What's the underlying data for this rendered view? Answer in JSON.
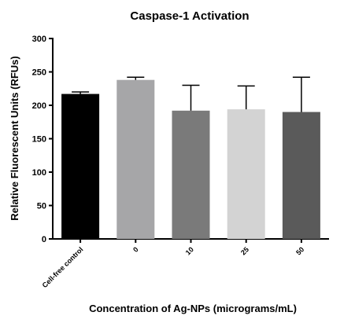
{
  "chart_data": {
    "type": "bar",
    "title": "Caspase-1 Activation",
    "xlabel": "Concentration of Ag-NPs (micrograms/mL)",
    "ylabel": "Relative Fluorescent Units (RFUs)",
    "categories": [
      "Cell-free control",
      "0",
      "10",
      "25",
      "50"
    ],
    "values": [
      217,
      238,
      192,
      194,
      190
    ],
    "error_upper": [
      3,
      4,
      38,
      35,
      52
    ],
    "bar_colors": [
      "#000000",
      "#a6a6a8",
      "#7a7a7a",
      "#d3d3d3",
      "#5a5a5a"
    ],
    "ylim": [
      0,
      300
    ],
    "yticks": [
      "0",
      "50",
      "100",
      "150",
      "200",
      "250",
      "300"
    ],
    "grid": false,
    "legend": "none"
  }
}
